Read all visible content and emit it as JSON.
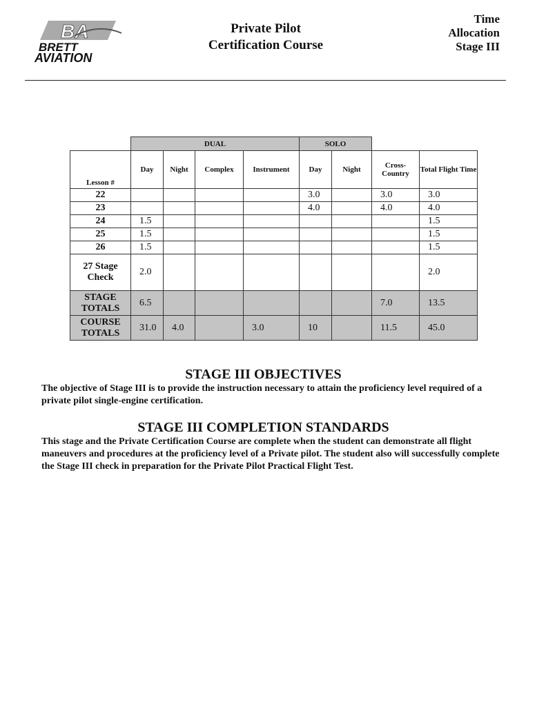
{
  "logo": {
    "text_top": "BA",
    "text_line1": "BRETT",
    "text_line2": "AVIATION"
  },
  "header": {
    "title_line1": "Private Pilot",
    "title_line2": "Certification Course",
    "stage_line1": "Time",
    "stage_line2": "Allocation",
    "stage_line3": "Stage III"
  },
  "table": {
    "group_headers": {
      "dual": "DUAL",
      "solo": "SOLO"
    },
    "columns": [
      "Lesson #",
      "Day",
      "Night",
      "Complex",
      "Instrument",
      "Day",
      "Night",
      "Cross-Country",
      "Total Flight Time"
    ],
    "rows": [
      {
        "lesson": "22",
        "cells": [
          "",
          "",
          "",
          "",
          "3.0",
          "",
          "3.0",
          "3.0"
        ]
      },
      {
        "lesson": "23",
        "cells": [
          "",
          "",
          "",
          "",
          "4.0",
          "",
          "4.0",
          "4.0"
        ]
      },
      {
        "lesson": "24",
        "cells": [
          "1.5",
          "",
          "",
          "",
          "",
          "",
          "",
          "1.5"
        ]
      },
      {
        "lesson": "25",
        "cells": [
          "1.5",
          "",
          "",
          "",
          "",
          "",
          "",
          "1.5"
        ]
      },
      {
        "lesson": "26",
        "cells": [
          "1.5",
          "",
          "",
          "",
          "",
          "",
          "",
          "1.5"
        ]
      },
      {
        "lesson": "27 Stage Check",
        "cells": [
          "2.0",
          "",
          "",
          "",
          "",
          "",
          "",
          "2.0"
        ]
      }
    ],
    "stage_totals": {
      "label": "STAGE TOTALS",
      "cells": [
        "6.5",
        "",
        "",
        "",
        "",
        "",
        "7.0",
        "13.5"
      ]
    },
    "course_totals": {
      "label": "COURSE TOTALS",
      "cells": [
        "31.0",
        "4.0",
        "",
        "3.0",
        "10",
        "",
        "11.5",
        "45.0"
      ]
    }
  },
  "objectives": {
    "heading": "STAGE III OBJECTIVES",
    "text": "The objective of Stage III is to provide the instruction necessary to attain the proficiency level required of a private pilot single-engine certification."
  },
  "completion": {
    "heading": "STAGE III COMPLETION STANDARDS",
    "text": "This stage and the Private Certification Course are complete when the student can demonstrate all flight maneuvers and procedures at the proficiency level of a Private pilot.  The student also will successfully complete the Stage III check in preparation for the Private Pilot Practical Flight Test."
  }
}
